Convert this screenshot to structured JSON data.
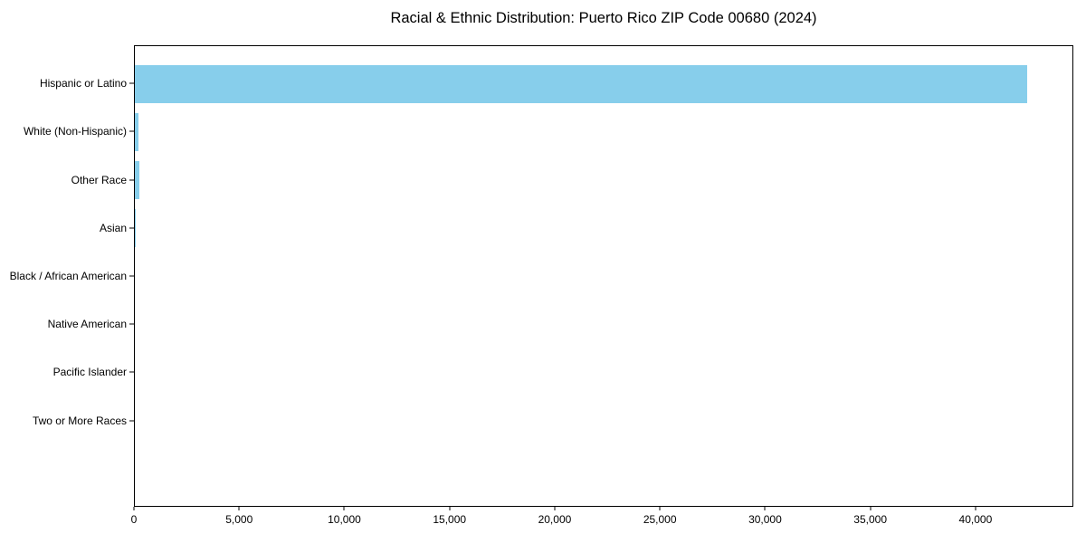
{
  "chart_data": {
    "type": "bar",
    "orientation": "horizontal",
    "title": "Racial & Ethnic Distribution: Puerto Rico ZIP Code 00680 (2024)",
    "categories": [
      "Hispanic or Latino",
      "White (Non-Hispanic)",
      "Other Race",
      "Asian",
      "Black / African American",
      "Native American",
      "Pacific Islander",
      "Two or More Races"
    ],
    "values": [
      42500,
      170,
      210,
      50,
      0,
      0,
      0,
      0
    ],
    "xlabel": "",
    "ylabel": "",
    "xlim": [
      0,
      44650
    ],
    "x_ticks": [
      0,
      5000,
      10000,
      15000,
      20000,
      25000,
      30000,
      35000,
      40000
    ],
    "x_tick_labels": [
      "0",
      "5,000",
      "10,000",
      "15,000",
      "20,000",
      "25,000",
      "30,000",
      "35,000",
      "40,000"
    ],
    "bar_color": "#87ceeb",
    "grid": false,
    "legend": null
  },
  "colors": {
    "background": "#ffffff",
    "bar": "#87ceeb",
    "spine": "#000000",
    "text": "#000000"
  }
}
